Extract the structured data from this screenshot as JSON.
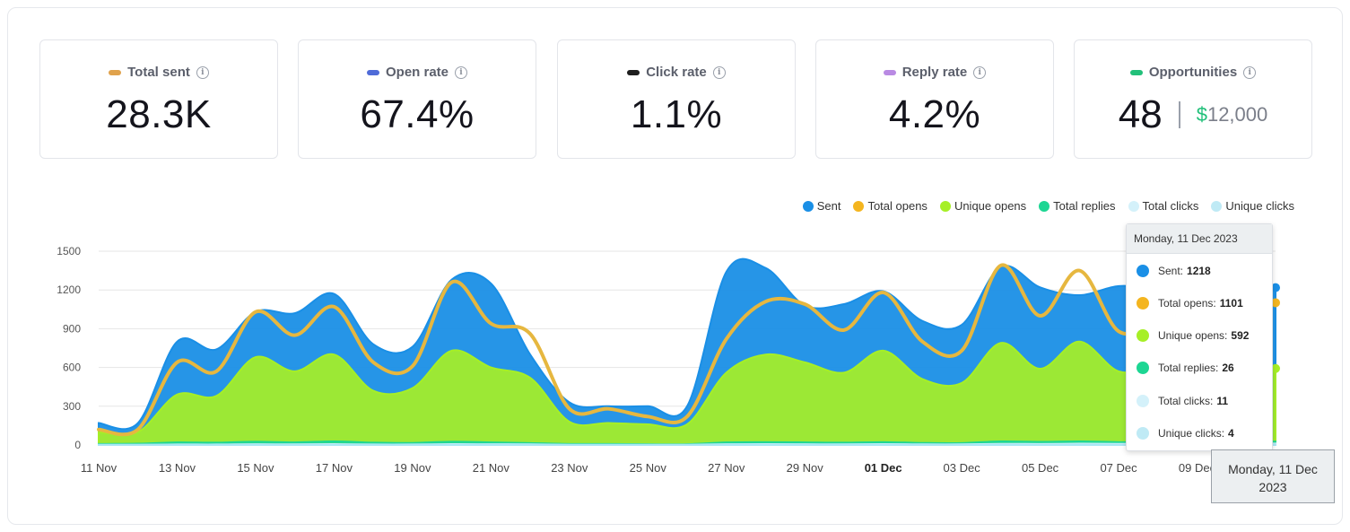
{
  "kpis": [
    {
      "label": "Total sent",
      "value": "28.3K",
      "color": "#e0a24c"
    },
    {
      "label": "Open rate",
      "value": "67.4%",
      "color": "#4f6bd8"
    },
    {
      "label": "Click rate",
      "value": "1.1%",
      "color": "#1e1e1e"
    },
    {
      "label": "Reply rate",
      "value": "4.2%",
      "color": "#b98ae3"
    },
    {
      "label": "Opportunities",
      "value": "48",
      "money_symbol": "$",
      "money_value": "12,000",
      "color": "#22c07a"
    }
  ],
  "icons": {
    "info": "info-icon"
  },
  "chart_data": {
    "type": "area",
    "x": [
      "11 Nov",
      "12 Nov",
      "13 Nov",
      "14 Nov",
      "15 Nov",
      "16 Nov",
      "17 Nov",
      "18 Nov",
      "19 Nov",
      "20 Nov",
      "21 Nov",
      "22 Nov",
      "23 Nov",
      "24 Nov",
      "25 Nov",
      "26 Nov",
      "27 Nov",
      "28 Nov",
      "29 Nov",
      "30 Nov",
      "01 Dec",
      "02 Dec",
      "03 Dec",
      "04 Dec",
      "05 Dec",
      "06 Dec",
      "07 Dec",
      "08 Dec",
      "09 Dec",
      "10 Dec",
      "11 Dec"
    ],
    "tick_labels": [
      "11 Nov",
      "13 Nov",
      "15 Nov",
      "17 Nov",
      "19 Nov",
      "21 Nov",
      "23 Nov",
      "25 Nov",
      "27 Nov",
      "29 Nov",
      "01 Dec",
      "03 Dec",
      "05 Dec",
      "07 Dec",
      "09 Dec"
    ],
    "bold_tick": "01 Dec",
    "ylim": [
      0,
      1500
    ],
    "yticks": [
      0,
      300,
      600,
      900,
      1200,
      1500
    ],
    "series": [
      {
        "name": "Sent",
        "color": "#1a8fe6",
        "fill": true,
        "values": [
          170,
          170,
          800,
          740,
          1030,
          1020,
          1170,
          780,
          760,
          1280,
          1250,
          700,
          330,
          300,
          300,
          300,
          1340,
          1370,
          1080,
          1090,
          1190,
          960,
          930,
          1380,
          1220,
          1160,
          1230,
          1210,
          1190,
          1200,
          1218
        ]
      },
      {
        "name": "Total opens",
        "color": "#e6b73f",
        "fill": false,
        "values": [
          120,
          120,
          640,
          570,
          1030,
          850,
          1070,
          640,
          610,
          1260,
          940,
          860,
          280,
          280,
          220,
          220,
          820,
          1110,
          1090,
          890,
          1180,
          800,
          730,
          1390,
          1000,
          1350,
          880,
          960,
          1080,
          1090,
          1101
        ]
      },
      {
        "name": "Unique opens",
        "color": "#a6ef26",
        "fill": true,
        "values": [
          100,
          100,
          390,
          380,
          680,
          570,
          700,
          420,
          440,
          730,
          600,
          520,
          180,
          170,
          160,
          160,
          560,
          700,
          640,
          560,
          730,
          510,
          480,
          790,
          590,
          800,
          570,
          600,
          590,
          595,
          592
        ]
      },
      {
        "name": "Total replies",
        "color": "#1dd693",
        "fill": true,
        "values": [
          8,
          10,
          20,
          18,
          25,
          20,
          28,
          18,
          16,
          25,
          20,
          15,
          8,
          8,
          6,
          6,
          20,
          22,
          20,
          18,
          22,
          16,
          15,
          28,
          24,
          28,
          22,
          24,
          25,
          26,
          26
        ]
      },
      {
        "name": "Total clicks",
        "color": "#d4f1fa",
        "fill": true,
        "values": [
          2,
          2,
          4,
          4,
          6,
          5,
          7,
          4,
          4,
          7,
          6,
          5,
          2,
          2,
          2,
          2,
          6,
          7,
          6,
          5,
          7,
          5,
          5,
          9,
          8,
          10,
          9,
          10,
          10,
          11,
          11
        ]
      },
      {
        "name": "Unique clicks",
        "color": "#a9e6f5",
        "fill": true,
        "values": [
          1,
          1,
          2,
          2,
          3,
          2,
          3,
          2,
          2,
          3,
          3,
          2,
          1,
          1,
          1,
          1,
          3,
          3,
          3,
          2,
          3,
          2,
          2,
          4,
          3,
          4,
          3,
          4,
          4,
          4,
          4
        ]
      }
    ]
  },
  "tooltip": {
    "title": "Monday, 11 Dec 2023",
    "rows": [
      {
        "label": "Sent:",
        "value": "1218",
        "color": "#1a8fe6"
      },
      {
        "label": "Total opens:",
        "value": "1101",
        "color": "#f4b51f"
      },
      {
        "label": "Unique opens:",
        "value": "592",
        "color": "#a6ef26"
      },
      {
        "label": "Total replies:",
        "value": "26",
        "color": "#1dd693"
      },
      {
        "label": "Total clicks:",
        "value": "11",
        "color": "#d4f1fa"
      },
      {
        "label": "Unique clicks:",
        "value": "4",
        "color": "#bfeaf5"
      }
    ]
  },
  "x_crosshair_label": "Monday, 11 Dec\n2023"
}
